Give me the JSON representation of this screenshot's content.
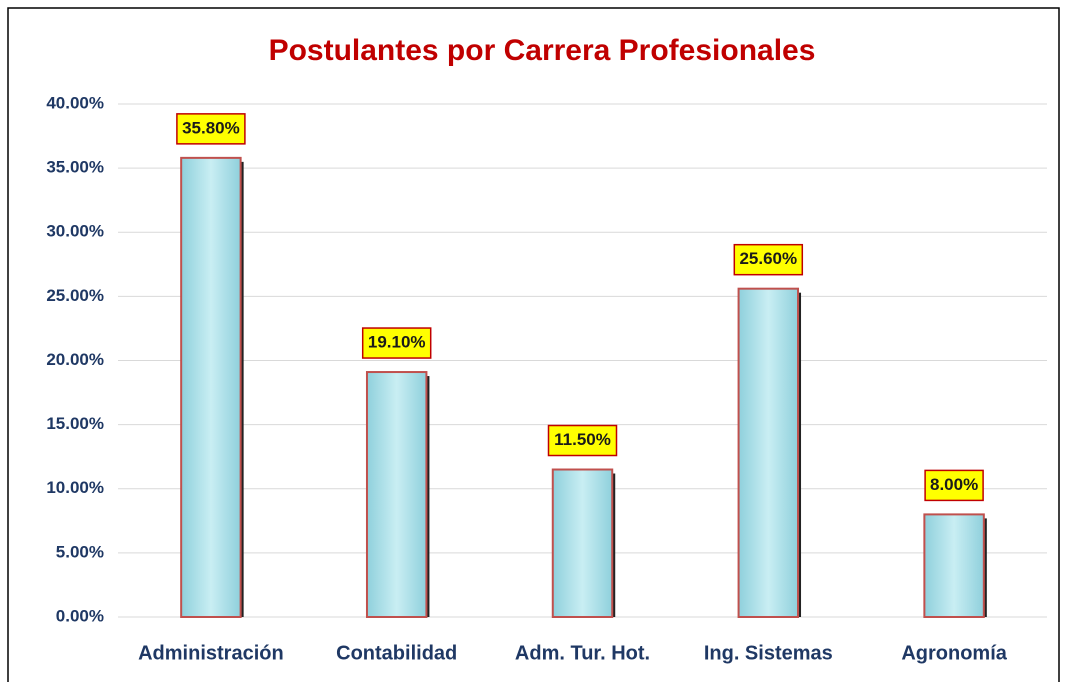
{
  "chart_data": {
    "type": "bar",
    "title": "Postulantes por Carrera Profesionales",
    "categories": [
      "Administración",
      "Contabilidad",
      "Adm. Tur. Hot.",
      "Ing. Sistemas",
      "Agronomía"
    ],
    "values": [
      35.8,
      19.1,
      11.5,
      25.6,
      8.0
    ],
    "value_labels": [
      "35.80%",
      "19.10%",
      "11.50%",
      "25.60%",
      "8.00%"
    ],
    "color": "#a8dde6",
    "ylim": [
      0,
      40
    ],
    "yticks": [
      {
        "value": 0,
        "label": "0.00%"
      },
      {
        "value": 5,
        "label": "5.00%"
      },
      {
        "value": 10,
        "label": "10.00%"
      },
      {
        "value": 15,
        "label": "15.00%"
      },
      {
        "value": 20,
        "label": "20.00%"
      },
      {
        "value": 25,
        "label": "25.00%"
      },
      {
        "value": 30,
        "label": "30.00%"
      },
      {
        "value": 35,
        "label": "35.00%"
      },
      {
        "value": 40,
        "label": "40.00%"
      }
    ],
    "grid": true
  }
}
